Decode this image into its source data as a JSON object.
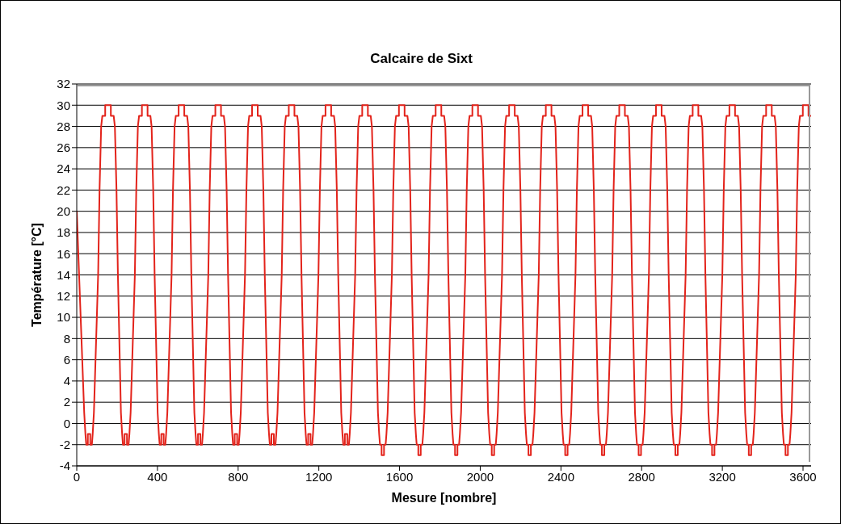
{
  "chart_data": {
    "type": "line",
    "title": "Calcaire de Sixt",
    "xlabel": "Mesure [nombre]",
    "ylabel": "Température [°C]",
    "xlim": [
      0,
      3640
    ],
    "xticks": [
      0,
      400,
      800,
      1200,
      1600,
      2000,
      2400,
      2800,
      3200,
      3600
    ],
    "ylim": [
      -4,
      32
    ],
    "yticks": [
      -4,
      -2,
      0,
      2,
      4,
      6,
      8,
      10,
      12,
      14,
      16,
      18,
      20,
      22,
      24,
      26,
      28,
      30,
      32
    ],
    "grid": "y",
    "marker": "none",
    "line_style": "solid",
    "series": [
      {
        "color": "#e3231b",
        "x": [
          0,
          37,
          43,
          47,
          55,
          55,
          67,
          67,
          75,
          79,
          85,
          106,
          113,
          121,
          127,
          141,
          141,
          169,
          169,
          183,
          189,
          197,
          204,
          219,
          225,
          229,
          237,
          237,
          249,
          249,
          257,
          261,
          267,
          288,
          295,
          303,
          309,
          323,
          323,
          351,
          351,
          365,
          371,
          379,
          386,
          401,
          407,
          411,
          419,
          419,
          431,
          431,
          439,
          443,
          449,
          470,
          477,
          485,
          491,
          505,
          505,
          533,
          533,
          547,
          553,
          561,
          568,
          583,
          589,
          593,
          601,
          601,
          613,
          613,
          621,
          625,
          631,
          652,
          659,
          667,
          673,
          687,
          687,
          715,
          715,
          729,
          735,
          743,
          750,
          765,
          771,
          775,
          783,
          783,
          795,
          795,
          803,
          807,
          813,
          834,
          841,
          849,
          855,
          869,
          869,
          897,
          897,
          911,
          917,
          925,
          932,
          947,
          953,
          957,
          965,
          965,
          977,
          977,
          985,
          989,
          995,
          1016,
          1023,
          1031,
          1037,
          1051,
          1051,
          1079,
          1079,
          1093,
          1099,
          1107,
          1114,
          1129,
          1135,
          1139,
          1147,
          1147,
          1159,
          1159,
          1167,
          1171,
          1177,
          1198,
          1205,
          1213,
          1219,
          1233,
          1233,
          1261,
          1261,
          1275,
          1281,
          1289,
          1296,
          1311,
          1317,
          1321,
          1329,
          1329,
          1341,
          1341,
          1349,
          1353,
          1359,
          1380,
          1387,
          1395,
          1401,
          1415,
          1415,
          1443,
          1443,
          1457,
          1463,
          1471,
          1478,
          1493,
          1499,
          1503,
          1511,
          1511,
          1523,
          1523,
          1531,
          1535,
          1541,
          1562,
          1569,
          1577,
          1583,
          1597,
          1597,
          1625,
          1625,
          1639,
          1645,
          1653,
          1660,
          1675,
          1681,
          1685,
          1693,
          1693,
          1705,
          1705,
          1713,
          1717,
          1723,
          1744,
          1751,
          1759,
          1765,
          1779,
          1779,
          1807,
          1807,
          1821,
          1827,
          1835,
          1842,
          1857,
          1863,
          1867,
          1875,
          1875,
          1887,
          1887,
          1895,
          1899,
          1905,
          1926,
          1933,
          1941,
          1947,
          1961,
          1961,
          1989,
          1989,
          2003,
          2009,
          2017,
          2024,
          2039,
          2045,
          2049,
          2057,
          2057,
          2069,
          2069,
          2077,
          2081,
          2087,
          2108,
          2115,
          2123,
          2129,
          2143,
          2143,
          2171,
          2171,
          2185,
          2191,
          2199,
          2206,
          2221,
          2227,
          2231,
          2239,
          2239,
          2251,
          2251,
          2259,
          2263,
          2269,
          2290,
          2297,
          2305,
          2311,
          2325,
          2325,
          2353,
          2353,
          2367,
          2373,
          2381,
          2388,
          2403,
          2409,
          2413,
          2421,
          2421,
          2433,
          2433,
          2441,
          2445,
          2451,
          2472,
          2479,
          2487,
          2493,
          2507,
          2507,
          2535,
          2535,
          2549,
          2555,
          2563,
          2570,
          2585,
          2591,
          2595,
          2603,
          2603,
          2615,
          2615,
          2623,
          2627,
          2633,
          2654,
          2661,
          2669,
          2675,
          2689,
          2689,
          2717,
          2717,
          2731,
          2737,
          2745,
          2752,
          2767,
          2773,
          2777,
          2785,
          2785,
          2797,
          2797,
          2805,
          2809,
          2815,
          2836,
          2843,
          2851,
          2857,
          2871,
          2871,
          2899,
          2899,
          2913,
          2919,
          2927,
          2934,
          2949,
          2955,
          2959,
          2967,
          2967,
          2979,
          2979,
          2987,
          2991,
          2997,
          3018,
          3025,
          3033,
          3039,
          3053,
          3053,
          3081,
          3081,
          3095,
          3101,
          3109,
          3116,
          3131,
          3137,
          3141,
          3149,
          3149,
          3161,
          3161,
          3169,
          3173,
          3179,
          3200,
          3207,
          3215,
          3221,
          3235,
          3235,
          3263,
          3263,
          3277,
          3283,
          3291,
          3298,
          3313,
          3319,
          3323,
          3331,
          3331,
          3343,
          3343,
          3351,
          3355,
          3361,
          3382,
          3389,
          3397,
          3403,
          3417,
          3417,
          3445,
          3445,
          3459,
          3465,
          3473,
          3480,
          3495,
          3501,
          3505,
          3513,
          3513,
          3525,
          3525,
          3533,
          3537,
          3543,
          3564,
          3571,
          3579,
          3585,
          3599,
          3599,
          3627,
          3627,
          3640
        ],
        "values": [
          20,
          1,
          -1,
          -2,
          -2,
          -1,
          -1,
          -2,
          -2,
          -1,
          1,
          14,
          22,
          28,
          29,
          29,
          30,
          30,
          29,
          29,
          28,
          22,
          14,
          1,
          -1,
          -2,
          -2,
          -1,
          -1,
          -2,
          -2,
          -1,
          1,
          14,
          22,
          28,
          29,
          29,
          30,
          30,
          29,
          29,
          28,
          22,
          14,
          1,
          -1,
          -2,
          -2,
          -1,
          -1,
          -2,
          -2,
          -1,
          1,
          14,
          22,
          28,
          29,
          29,
          30,
          30,
          29,
          29,
          28,
          22,
          14,
          1,
          -1,
          -2,
          -2,
          -1,
          -1,
          -2,
          -2,
          -1,
          1,
          14,
          22,
          28,
          29,
          29,
          30,
          30,
          29,
          29,
          28,
          22,
          14,
          1,
          -1,
          -2,
          -2,
          -1,
          -1,
          -2,
          -2,
          -1,
          1,
          14,
          22,
          28,
          29,
          29,
          30,
          30,
          29,
          29,
          28,
          22,
          14,
          1,
          -1,
          -2,
          -2,
          -1,
          -1,
          -2,
          -2,
          -1,
          1,
          14,
          22,
          28,
          29,
          29,
          30,
          30,
          29,
          29,
          28,
          22,
          14,
          1,
          -1,
          -2,
          -2,
          -1,
          -1,
          -2,
          -2,
          -1,
          1,
          14,
          22,
          28,
          29,
          29,
          30,
          30,
          29,
          29,
          28,
          22,
          14,
          1,
          -1,
          -2,
          -2,
          -1,
          -1,
          -2,
          -2,
          -1,
          1,
          14,
          22,
          28,
          29,
          29,
          30,
          30,
          29,
          29,
          28,
          22,
          14,
          1,
          -1,
          -2,
          -2,
          -3,
          -3,
          -2,
          -2,
          -1,
          1,
          14,
          22,
          28,
          29,
          29,
          30,
          30,
          29,
          29,
          28,
          22,
          14,
          1,
          -1,
          -2,
          -2,
          -3,
          -3,
          -2,
          -2,
          -1,
          1,
          14,
          22,
          28,
          29,
          29,
          30,
          30,
          29,
          29,
          28,
          22,
          14,
          1,
          -1,
          -2,
          -2,
          -3,
          -3,
          -2,
          -2,
          -1,
          1,
          14,
          22,
          28,
          29,
          29,
          30,
          30,
          29,
          29,
          28,
          22,
          14,
          1,
          -1,
          -2,
          -2,
          -3,
          -3,
          -2,
          -2,
          -1,
          1,
          14,
          22,
          28,
          29,
          29,
          30,
          30,
          29,
          29,
          28,
          22,
          14,
          1,
          -1,
          -2,
          -2,
          -3,
          -3,
          -2,
          -2,
          -1,
          1,
          14,
          22,
          28,
          29,
          29,
          30,
          30,
          29,
          29,
          28,
          22,
          14,
          1,
          -1,
          -2,
          -2,
          -3,
          -3,
          -2,
          -2,
          -1,
          1,
          14,
          22,
          28,
          29,
          29,
          30,
          30,
          29,
          29,
          28,
          22,
          14,
          1,
          -1,
          -2,
          -2,
          -3,
          -3,
          -2,
          -2,
          -1,
          1,
          14,
          22,
          28,
          29,
          29,
          30,
          30,
          29,
          29,
          28,
          22,
          14,
          1,
          -1,
          -2,
          -2,
          -3,
          -3,
          -2,
          -2,
          -1,
          1,
          14,
          22,
          28,
          29,
          29,
          30,
          30,
          29,
          29,
          28,
          22,
          14,
          1,
          -1,
          -2,
          -2,
          -3,
          -3,
          -2,
          -2,
          -1,
          1,
          14,
          22,
          28,
          29,
          29,
          30,
          30,
          29,
          29,
          28,
          22,
          14,
          1,
          -1,
          -2,
          -2,
          -3,
          -3,
          -2,
          -2,
          -1,
          1,
          14,
          22,
          28,
          29,
          29,
          30,
          30,
          29,
          29,
          28,
          22,
          14,
          1,
          -1,
          -2,
          -2,
          -3,
          -3,
          -2,
          -2,
          -1,
          1,
          14,
          22,
          28,
          29,
          29,
          30,
          30,
          29,
          29,
          28,
          22,
          14,
          1,
          -1,
          -2,
          -2,
          -3,
          -3,
          -2,
          -2,
          -1,
          1,
          14,
          22,
          28,
          29,
          29,
          30,
          30,
          29,
          29
        ]
      }
    ]
  }
}
